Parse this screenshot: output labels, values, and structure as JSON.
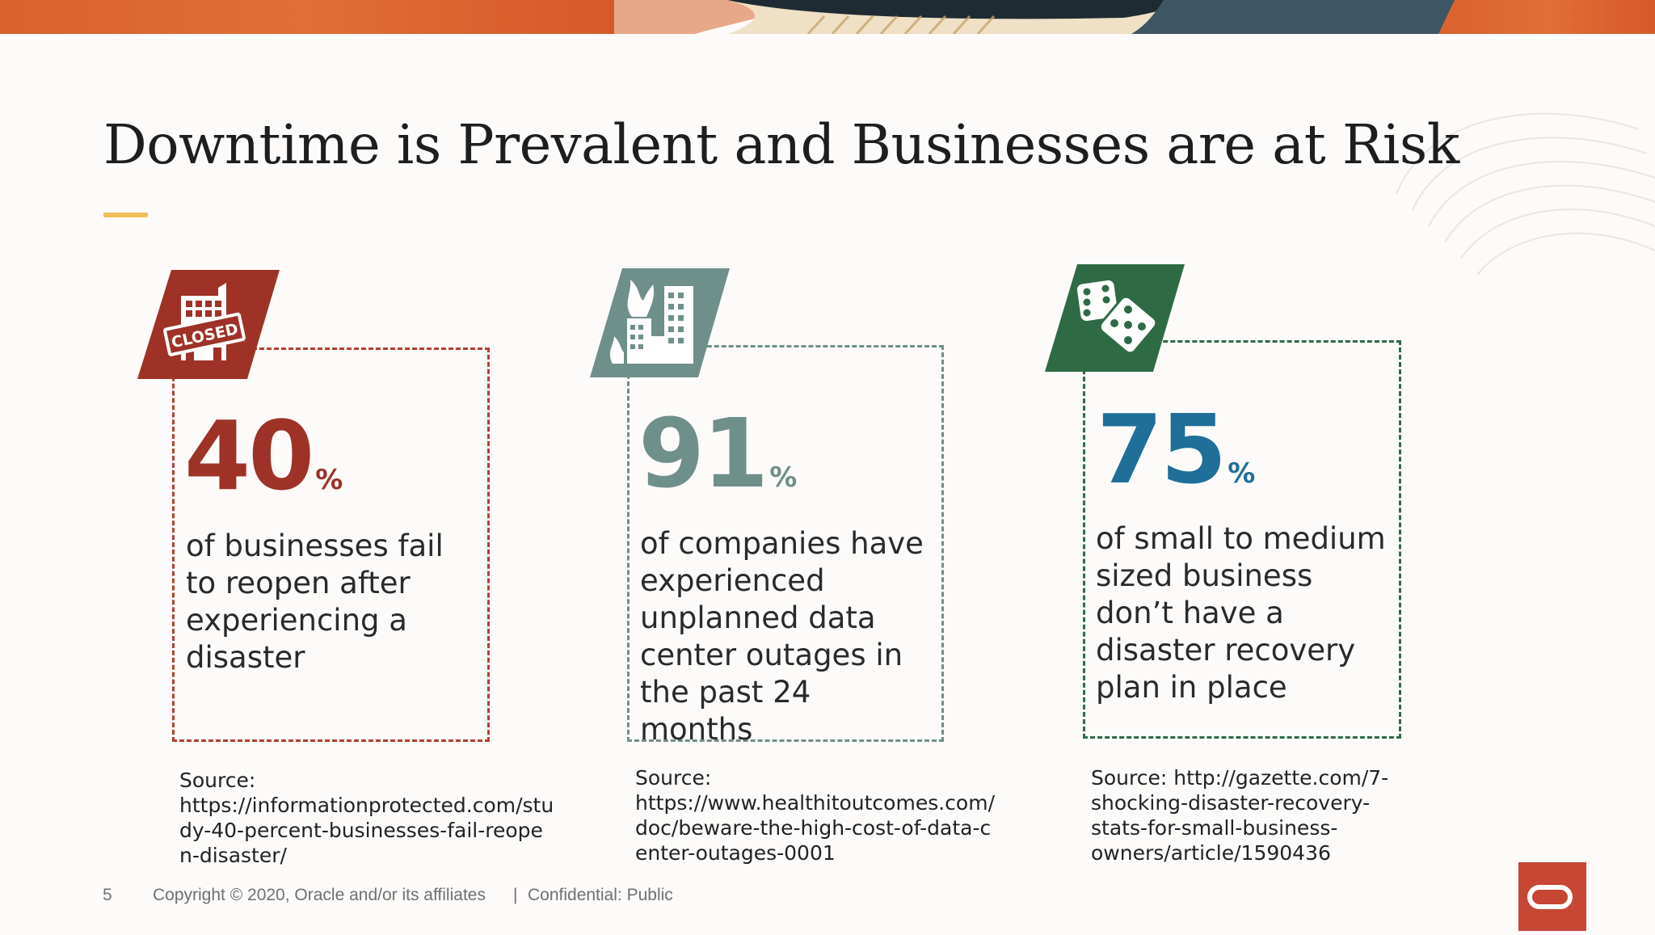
{
  "slide": {
    "title": "Downtime is Prevalent and Businesses are at Risk",
    "page_number": "5",
    "copyright": "Copyright © 2020, Oracle and/or its affiliates",
    "separator": "|",
    "confidentiality": "Confidential: Public"
  },
  "colors": {
    "accent_bar": "#f2be5a",
    "stat1": "#9e3227",
    "stat2": "#6f8f8a",
    "stat3": "#1f6f99",
    "badge3": "#2e6b45",
    "oracle_red": "#c74634"
  },
  "stats": [
    {
      "value": "40",
      "unit": "%",
      "description": "of businesses fail to reopen after experiencing a disaster",
      "source_label": "Source:",
      "source_url": "https://informationprotected.com/study-40-percent-businesses-fail-reopen-disaster/",
      "icon": "closed-building-icon",
      "closed_label": "CLOSED"
    },
    {
      "value": "91",
      "unit": "%",
      "description": "of companies have experienced unplanned data center outages in the past 24 months",
      "source_label": "Source:",
      "source_url": "https://www.healthitoutcomes.com/doc/beware-the-high-cost-of-data-center-outages-0001",
      "icon": "burning-buildings-icon"
    },
    {
      "value": "75",
      "unit": "%",
      "description": "of small to medium sized business don’t have a disaster recovery plan in place",
      "source_label": "Source:",
      "source_url": "http://gazette.com/7-shocking-disaster-recovery-stats-for-small-business-owners/article/1590436",
      "icon": "dice-icon"
    }
  ]
}
